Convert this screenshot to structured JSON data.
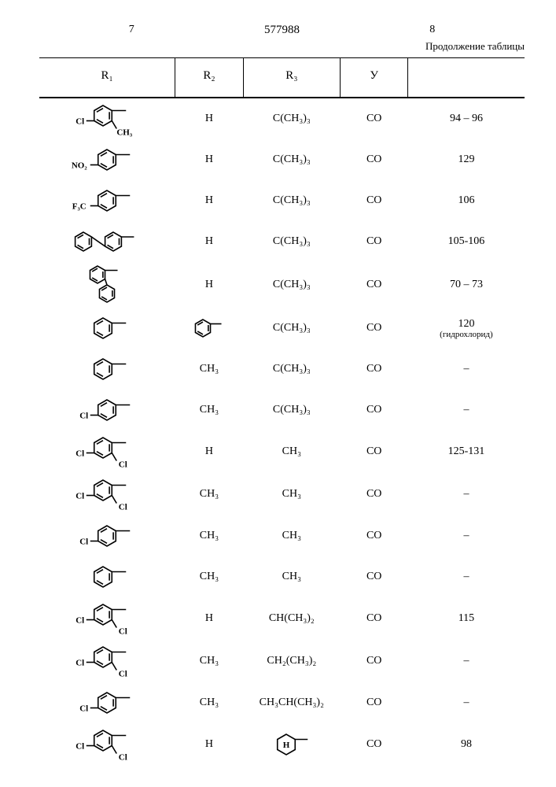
{
  "patent_number": "577988",
  "page_left": "7",
  "page_right": "8",
  "continuation": "Продолжение таблицы",
  "headers": {
    "r1": "R₁",
    "r2": "R₂",
    "r3": "R₃",
    "y": "У",
    "val": ""
  },
  "rows": [
    {
      "r1_svg": "ring-cl-ch3-bond",
      "r2": "H",
      "r3": "C(CH₃)₃",
      "y": "CO",
      "v": "94 – 96"
    },
    {
      "r1_svg": "ring-no2-bond",
      "r2": "H",
      "r3": "C(CH₃)₃",
      "y": "CO",
      "v": "129"
    },
    {
      "r1_svg": "ring-f3c-bond",
      "r2": "H",
      "r3": "C(CH₃)₃",
      "y": "CO",
      "v": "106"
    },
    {
      "r1_svg": "biphenyl-bond",
      "r2": "H",
      "r3": "C(CH₃)₃",
      "y": "CO",
      "v": "105-106"
    },
    {
      "r1_svg": "biphenyl-ortho",
      "r2": "H",
      "r3": "C(CH₃)₃",
      "y": "CO",
      "v": "70 – 73"
    },
    {
      "r1_svg": "ring-bond",
      "r2_svg": "ring-bond-small",
      "r3": "C(CH₃)₃",
      "y": "CO",
      "v": "120",
      "note": "(гидрохлорид)"
    },
    {
      "r1_svg": "ring-bond",
      "r2": "CH₃",
      "r3": "C(CH₃)₃",
      "y": "CO",
      "v": "–"
    },
    {
      "r1_svg": "ring-cl-bond",
      "r2": "CH₃",
      "r3": "C(CH₃)₃",
      "y": "CO",
      "v": "–"
    },
    {
      "r1_svg": "ring-cl-cl-bond",
      "r2": "H",
      "r3": "CH₃",
      "y": "CO",
      "v": "125-131"
    },
    {
      "r1_svg": "ring-cl-cl-bond",
      "r2": "CH₃",
      "r3": "CH₃",
      "y": "CO",
      "v": "–"
    },
    {
      "r1_svg": "ring-cl-bond",
      "r2": "CH₃",
      "r3": "CH₃",
      "y": "CO",
      "v": "–"
    },
    {
      "r1_svg": "ring-bond",
      "r2": "CH₃",
      "r3": "CH₃",
      "y": "CO",
      "v": "–"
    },
    {
      "r1_svg": "ring-cl-cl-bond",
      "r2": "H",
      "r3": "CH(CH₃)₂",
      "y": "CO",
      "v": "115"
    },
    {
      "r1_svg": "ring-cl-cl-bond",
      "r2": "CH₃",
      "r3": "CH₂(CH₃)₂",
      "y": "CO",
      "v": "–"
    },
    {
      "r1_svg": "ring-cl-bond",
      "r2": "CH₃",
      "r3": "CH₃CH(CH₃)₂",
      "y": "CO",
      "v": "–"
    },
    {
      "r1_svg": "ring-cl-cl-bond",
      "r2": "H",
      "r3_svg": "cyclohexyl-h",
      "y": "CO",
      "v": "98"
    }
  ],
  "svg": {
    "stroke": "#000000",
    "stroke_width": 1.6,
    "font": "bold 11px serif"
  }
}
